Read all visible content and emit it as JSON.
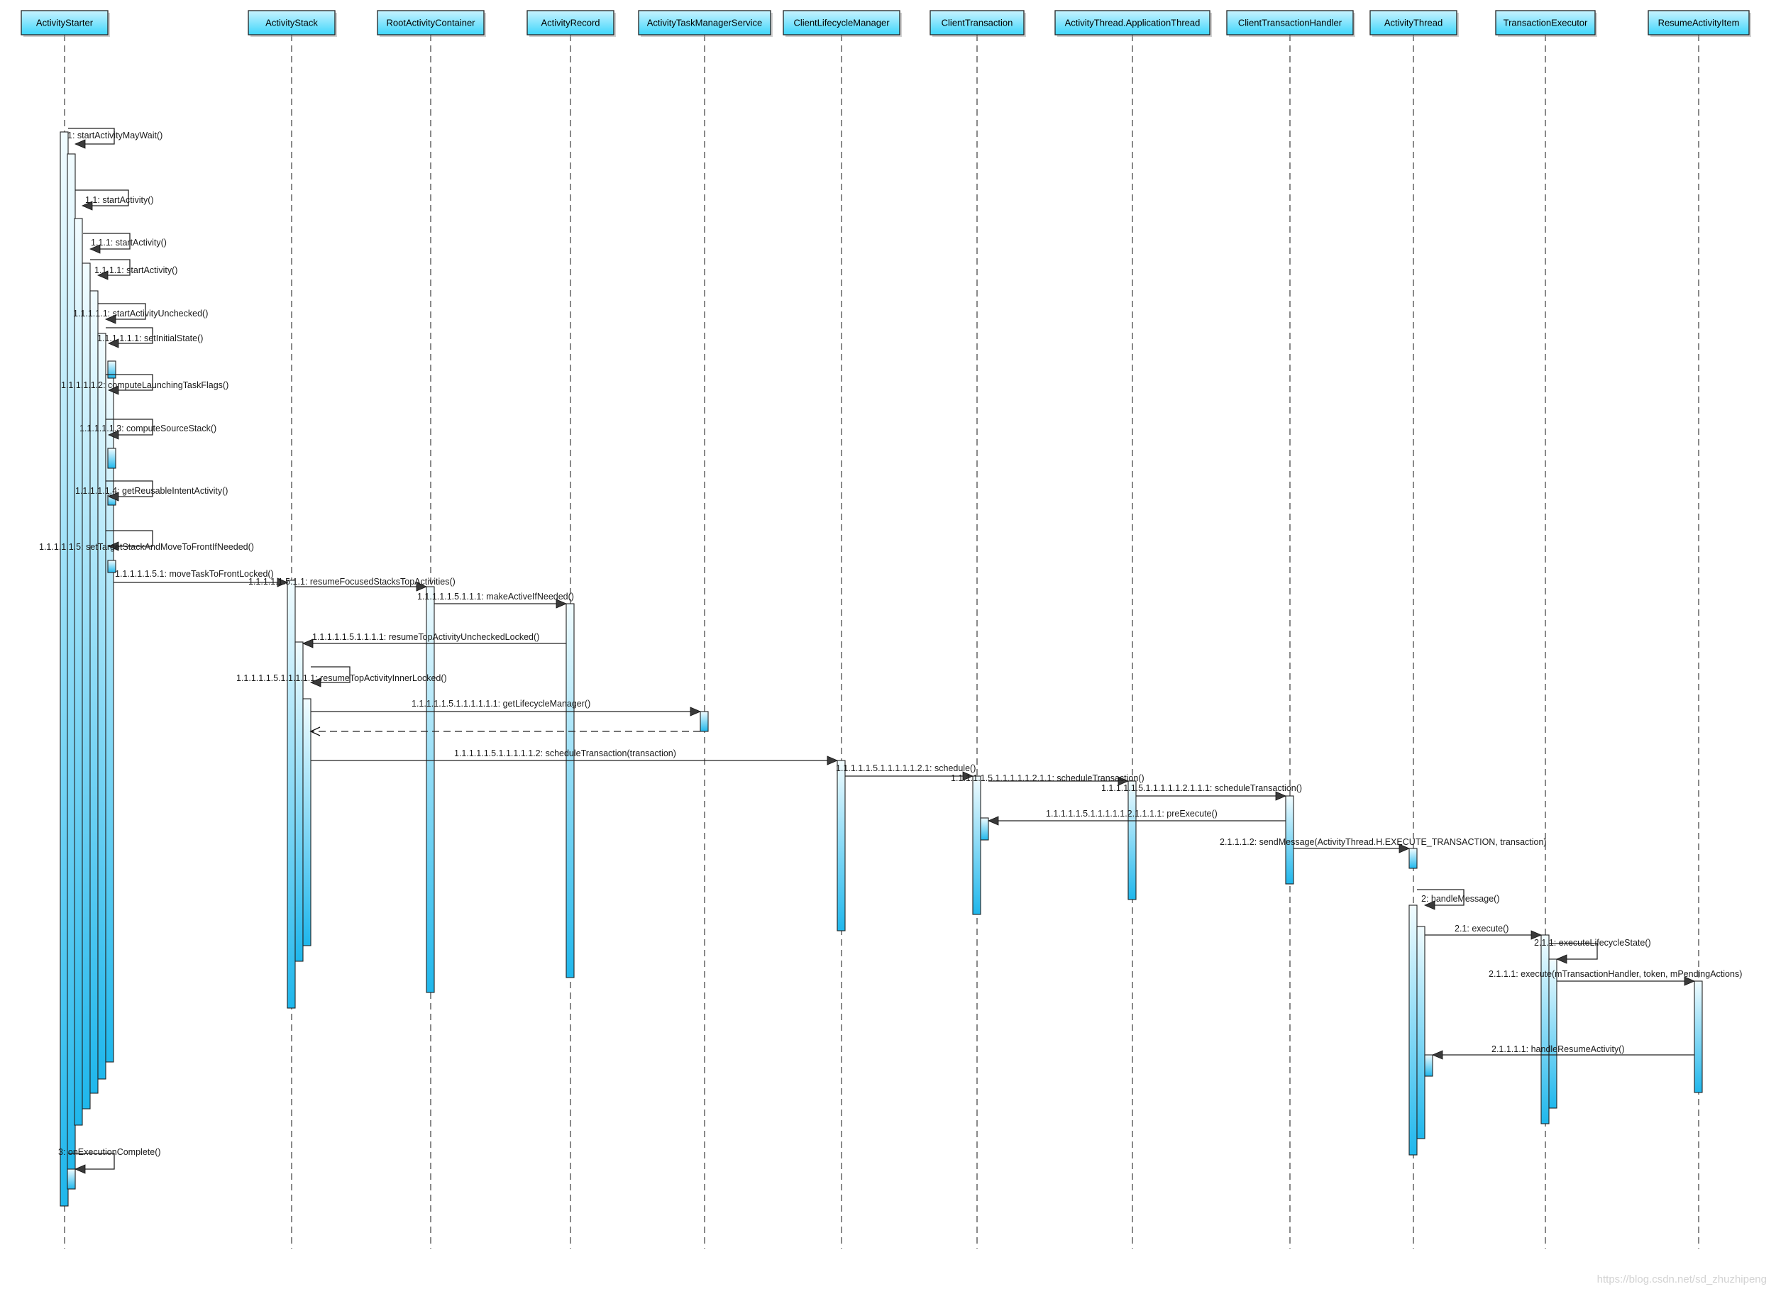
{
  "diagram": {
    "type": "uml-sequence",
    "watermark": "https://blog.csdn.net/sd_zhuzhipeng",
    "colors": {
      "header_fill": "#3fd6fb",
      "header_fill_light": "#c8f3ff",
      "activation_top": "#f2fcff",
      "activation_bottom": "#1fb7ec",
      "line": "#222222",
      "lifeline": "#4a4a4a"
    },
    "lifelines": [
      {
        "id": "starter",
        "name": "ActivityStarter"
      },
      {
        "id": "stack",
        "name": "ActivityStack"
      },
      {
        "id": "rac",
        "name": "RootActivityContainer"
      },
      {
        "id": "ar",
        "name": "ActivityRecord"
      },
      {
        "id": "atms",
        "name": "ActivityTaskManagerService"
      },
      {
        "id": "clm",
        "name": "ClientLifecycleManager"
      },
      {
        "id": "ct",
        "name": "ClientTransaction"
      },
      {
        "id": "at_app",
        "name": "ActivityThread.ApplicationThread"
      },
      {
        "id": "cth",
        "name": "ClientTransactionHandler"
      },
      {
        "id": "at",
        "name": "ActivityThread"
      },
      {
        "id": "te",
        "name": "TransactionExecutor"
      },
      {
        "id": "rai",
        "name": "ResumeActivityItem"
      }
    ],
    "messages": [
      {
        "from": "starter",
        "to": "starter",
        "label": "1: startActivityMayWait()"
      },
      {
        "from": "starter",
        "to": "starter",
        "label": "1.1: startActivity()"
      },
      {
        "from": "starter",
        "to": "starter",
        "label": "1.1.1: startActivity()"
      },
      {
        "from": "starter",
        "to": "starter",
        "label": "1.1.1.1: startActivity()"
      },
      {
        "from": "starter",
        "to": "starter",
        "label": "1.1.1.1.1: startActivityUnchecked()"
      },
      {
        "from": "starter",
        "to": "starter",
        "label": "1.1.1.1.1.1: setInitialState()"
      },
      {
        "from": "starter",
        "to": "starter",
        "label": "1.1.1.1.1.2: computeLaunchingTaskFlags()"
      },
      {
        "from": "starter",
        "to": "starter",
        "label": "1.1.1.1.1.3: computeSourceStack()"
      },
      {
        "from": "starter",
        "to": "starter",
        "label": "1.1.1.1.1.4: getReusableIntentActivity()"
      },
      {
        "from": "starter",
        "to": "starter",
        "label": "1.1.1.1.1.5: setTargetStackAndMoveToFrontIfNeeded()"
      },
      {
        "from": "starter",
        "to": "stack",
        "label": "1.1.1.1.1.5.1: moveTaskToFrontLocked()"
      },
      {
        "from": "stack",
        "to": "rac",
        "label": "1.1.1.1.1.5.1.1: resumeFocusedStacksTopActivities()"
      },
      {
        "from": "rac",
        "to": "ar",
        "label": "1.1.1.1.1.5.1.1.1: makeActiveIfNeeded()"
      },
      {
        "from": "ar",
        "to": "stack",
        "label": "1.1.1.1.1.5.1.1.1.1: resumeTopActivityUncheckedLocked()"
      },
      {
        "from": "stack",
        "to": "stack",
        "label": "1.1.1.1.1.5.1.1.1.1.1: resumeTopActivityInnerLocked()"
      },
      {
        "from": "stack",
        "to": "atms",
        "label": "1.1.1.1.1.5.1.1.1.1.1.1: getLifecycleManager()"
      },
      {
        "from": "atms",
        "to": "stack",
        "label": "",
        "return": true
      },
      {
        "from": "stack",
        "to": "clm",
        "label": "1.1.1.1.1.5.1.1.1.1.1.2: scheduleTransaction(transaction)"
      },
      {
        "from": "clm",
        "to": "ct",
        "label": "1.1.1.1.1.5.1.1.1.1.1.2.1: schedule()"
      },
      {
        "from": "ct",
        "to": "at_app",
        "label": "1.1.1.1.1.5.1.1.1.1.1.2.1.1: scheduleTransaction()"
      },
      {
        "from": "at_app",
        "to": "cth",
        "label": "1.1.1.1.1.5.1.1.1.1.1.2.1.1.1: scheduleTransaction()"
      },
      {
        "from": "cth",
        "to": "ct",
        "label": "1.1.1.1.1.5.1.1.1.1.1.2.1.1.1.1: preExecute()"
      },
      {
        "from": "cth",
        "to": "at",
        "label": "2.1.1.1.2: sendMessage(ActivityThread.H.EXECUTE_TRANSACTION, transaction)"
      },
      {
        "from": "at",
        "to": "at",
        "label": "2: handleMessage()"
      },
      {
        "from": "at",
        "to": "te",
        "label": "2.1: execute()"
      },
      {
        "from": "te",
        "to": "te",
        "label": "2.1.1: executeLifecycleState()"
      },
      {
        "from": "te",
        "to": "rai",
        "label": "2.1.1.1: execute(mTransactionHandler, token, mPendingActions)"
      },
      {
        "from": "rai",
        "to": "at",
        "label": "2.1.1.1.1: handleResumeActivity()"
      },
      {
        "from": "starter",
        "to": "starter",
        "label": "3: onExecutionComplete()"
      }
    ]
  }
}
